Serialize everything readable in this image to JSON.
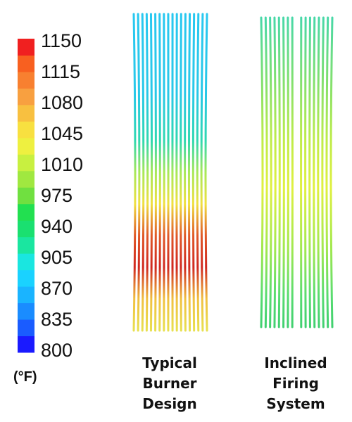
{
  "legend": {
    "unit": "(°F)",
    "ticks": [
      "1150",
      "1115",
      "1080",
      "1045",
      "1010",
      "975",
      "940",
      "905",
      "870",
      "835",
      "800"
    ],
    "min": 800,
    "max": 1150,
    "colors": [
      "#1a1aff",
      "#1a5cff",
      "#1a8cff",
      "#1ab4ff",
      "#1ad2ff",
      "#1ae6e0",
      "#1ae6a0",
      "#1ae070",
      "#22e050",
      "#70e040",
      "#a0e840",
      "#c8f040",
      "#eef040",
      "#f8e040",
      "#f8c040",
      "#f8a040",
      "#f88030",
      "#f86020",
      "#f02020"
    ]
  },
  "panels": [
    {
      "name": "typical-burner-design",
      "label_lines": [
        "Typical",
        "Burner",
        "Design"
      ]
    },
    {
      "name": "inclined-firing-system",
      "label_lines": [
        "Inclined",
        "Firing",
        "System"
      ]
    }
  ]
}
